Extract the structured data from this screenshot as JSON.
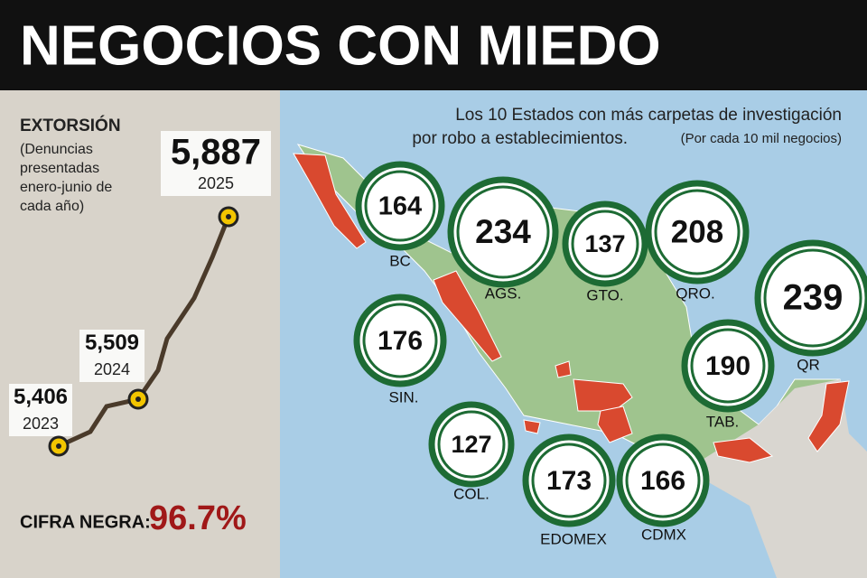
{
  "header": {
    "title": "NEGOCIOS CON MIEDO"
  },
  "extortion": {
    "title": "EXTORSIÓN",
    "note": "(Denuncias presentadas enero-junio de cada año)",
    "points": [
      {
        "value": "5,406",
        "year": "2023"
      },
      {
        "value": "5,509",
        "year": "2024"
      },
      {
        "value": "5,887",
        "year": "2025"
      }
    ],
    "dark_figure": {
      "label": "CIFRA NEGRA:",
      "value": "96.7%"
    }
  },
  "map": {
    "title": "Los 10 Estados con más carpetas de investigación",
    "subtitle": "por robo a establecimientos.",
    "note": "(Por cada 10 mil negocios)",
    "states": [
      {
        "label": "BC",
        "value": "164"
      },
      {
        "label": "AGS.",
        "value": "234"
      },
      {
        "label": "GTO.",
        "value": "137"
      },
      {
        "label": "QRO.",
        "value": "208"
      },
      {
        "label": "QR",
        "value": "239"
      },
      {
        "label": "SIN.",
        "value": "176"
      },
      {
        "label": "TAB.",
        "value": "190"
      },
      {
        "label": "COL.",
        "value": "127"
      },
      {
        "label": "EDOMEX",
        "value": "173"
      },
      {
        "label": "CDMX",
        "value": "166"
      }
    ]
  }
}
